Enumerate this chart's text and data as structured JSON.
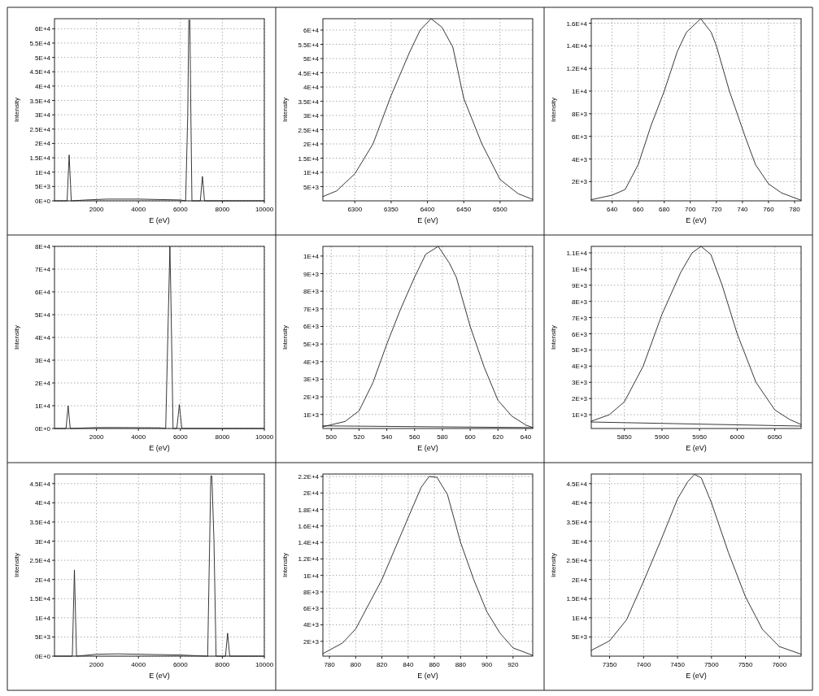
{
  "chart_data": [
    {
      "type": "line",
      "xlabel": "E (eV)",
      "ylabel": "Intensity",
      "grid": true,
      "xlim": [
        0,
        10000
      ],
      "xticks": [
        2000,
        4000,
        6000,
        8000,
        10000
      ],
      "ylim": [
        0,
        63500
      ],
      "yticks": [
        {
          "value": 0,
          "label": "0E+0"
        },
        {
          "value": 5000,
          "label": "5E+3"
        },
        {
          "value": 10000,
          "label": "1E+4"
        },
        {
          "value": 15000,
          "label": "1.5E+4"
        },
        {
          "value": 20000,
          "label": "2E+4"
        },
        {
          "value": 25000,
          "label": "2.5E+4"
        },
        {
          "value": 30000,
          "label": "3E+4"
        },
        {
          "value": 35000,
          "label": "3.5E+4"
        },
        {
          "value": 40000,
          "label": "4E+4"
        },
        {
          "value": 45000,
          "label": "4.5E+4"
        },
        {
          "value": 50000,
          "label": "5E+4"
        },
        {
          "value": 55000,
          "label": "5.5E+4"
        },
        {
          "value": 60000,
          "label": "6E+4"
        }
      ],
      "series": [
        {
          "color": "#222222",
          "x": [
            0,
            600,
            700,
            800,
            1500,
            2500,
            4000,
            6000,
            6250,
            6350,
            6400,
            6450,
            6500,
            6550,
            6950,
            7050,
            7150,
            10000
          ],
          "values": [
            0,
            0,
            16000,
            0,
            300,
            600,
            600,
            300,
            0,
            30000,
            63000,
            63000,
            30000,
            0,
            0,
            8500,
            0,
            0
          ]
        }
      ]
    },
    {
      "type": "line",
      "xlabel": "E (eV)",
      "ylabel": "Intensity",
      "grid": true,
      "xlim": [
        6256,
        6545
      ],
      "xticks": [
        6300,
        6350,
        6400,
        6450,
        6500
      ],
      "ylim": [
        0,
        64000
      ],
      "yticks": [
        {
          "value": 5000,
          "label": "5E+3"
        },
        {
          "value": 10000,
          "label": "1E+4"
        },
        {
          "value": 15000,
          "label": "1.5E+4"
        },
        {
          "value": 20000,
          "label": "2E+4"
        },
        {
          "value": 25000,
          "label": "2.5E+4"
        },
        {
          "value": 30000,
          "label": "3E+4"
        },
        {
          "value": 35000,
          "label": "3.5E+4"
        },
        {
          "value": 40000,
          "label": "4E+4"
        },
        {
          "value": 45000,
          "label": "4.5E+4"
        },
        {
          "value": 50000,
          "label": "5E+4"
        },
        {
          "value": 55000,
          "label": "5.5E+4"
        },
        {
          "value": 60000,
          "label": "6E+4"
        }
      ],
      "series": [
        {
          "color": "#222222",
          "x": [
            6256,
            6275,
            6300,
            6325,
            6350,
            6375,
            6390,
            6405,
            6420,
            6435,
            6450,
            6475,
            6500,
            6525,
            6545
          ],
          "values": [
            1500,
            3500,
            9500,
            20000,
            37000,
            52000,
            60000,
            64000,
            61000,
            54000,
            36000,
            20000,
            7500,
            2500,
            500
          ]
        }
      ]
    },
    {
      "type": "line",
      "xlabel": "E (eV)",
      "ylabel": "Intensity",
      "grid": true,
      "xlim": [
        624,
        785
      ],
      "xticks": [
        640,
        660,
        680,
        700,
        720,
        740,
        760,
        780
      ],
      "ylim": [
        300,
        16400
      ],
      "yticks": [
        {
          "value": 2000,
          "label": "2E+3"
        },
        {
          "value": 4000,
          "label": "4E+3"
        },
        {
          "value": 6000,
          "label": "6E+3"
        },
        {
          "value": 8000,
          "label": "8E+3"
        },
        {
          "value": 10000,
          "label": "1E+4"
        },
        {
          "value": 12000,
          "label": "1.2E+4"
        },
        {
          "value": 14000,
          "label": "1.4E+4"
        },
        {
          "value": 16000,
          "label": "1.6E+4"
        }
      ],
      "series": [
        {
          "color": "#222222",
          "x": [
            624,
            640,
            650,
            660,
            670,
            680,
            690,
            697,
            708,
            716,
            720,
            730,
            742,
            750,
            760,
            770,
            785
          ],
          "values": [
            400,
            800,
            1300,
            3500,
            7000,
            10000,
            13500,
            15200,
            16400,
            15200,
            14000,
            10000,
            6000,
            3500,
            1800,
            1000,
            350
          ]
        }
      ]
    },
    {
      "type": "line",
      "xlabel": "E (eV)",
      "ylabel": "Intensity",
      "grid": true,
      "xlim": [
        0,
        10000
      ],
      "xticks": [
        2000,
        4000,
        6000,
        8000,
        10000
      ],
      "ylim": [
        0,
        80000
      ],
      "yticks": [
        {
          "value": 0,
          "label": "0E+0"
        },
        {
          "value": 10000,
          "label": "1E+4"
        },
        {
          "value": 20000,
          "label": "2E+4"
        },
        {
          "value": 30000,
          "label": "3E+4"
        },
        {
          "value": 40000,
          "label": "4E+4"
        },
        {
          "value": 50000,
          "label": "5E+4"
        },
        {
          "value": 60000,
          "label": "6E+4"
        },
        {
          "value": 70000,
          "label": "7E+4"
        },
        {
          "value": 80000,
          "label": "8E+4"
        }
      ],
      "series": [
        {
          "color": "#222222",
          "x": [
            0,
            550,
            650,
            750,
            2000,
            3000,
            5000,
            5300,
            5450,
            5500,
            5550,
            5650,
            5830,
            5900,
            5950,
            6000,
            6070,
            10000
          ],
          "values": [
            0,
            0,
            10000,
            0,
            400,
            400,
            300,
            0,
            60000,
            80000,
            56000,
            0,
            0,
            6000,
            10500,
            6000,
            0,
            0
          ]
        }
      ]
    },
    {
      "type": "line",
      "xlabel": "E (eV)",
      "ylabel": "Intensity",
      "grid": true,
      "xlim": [
        494,
        645
      ],
      "xticks": [
        500,
        520,
        540,
        560,
        580,
        600,
        620,
        640
      ],
      "ylim": [
        200,
        10550
      ],
      "yticks": [
        {
          "value": 1000,
          "label": "1E+3"
        },
        {
          "value": 2000,
          "label": "2E+3"
        },
        {
          "value": 3000,
          "label": "3E+3"
        },
        {
          "value": 4000,
          "label": "4E+3"
        },
        {
          "value": 5000,
          "label": "5E+3"
        },
        {
          "value": 6000,
          "label": "6E+3"
        },
        {
          "value": 7000,
          "label": "7E+3"
        },
        {
          "value": 8000,
          "label": "8E+3"
        },
        {
          "value": 9000,
          "label": "9E+3"
        },
        {
          "value": 10000,
          "label": "1E+4"
        }
      ],
      "series": [
        {
          "color": "#222222",
          "x": [
            494,
            510,
            520,
            530,
            540,
            550,
            560,
            568,
            577,
            585,
            590,
            600,
            610,
            620,
            630,
            640,
            645
          ],
          "values": [
            300,
            600,
            1200,
            2800,
            5000,
            7000,
            8800,
            10100,
            10550,
            9600,
            8800,
            6000,
            3700,
            1800,
            900,
            400,
            250
          ]
        },
        {
          "color": "#222222",
          "x": [
            494,
            645
          ],
          "values": [
            350,
            250
          ]
        }
      ]
    },
    {
      "type": "line",
      "xlabel": "E (eV)",
      "ylabel": "Intensity",
      "grid": true,
      "xlim": [
        5806,
        6085
      ],
      "xticks": [
        5850,
        5900,
        5950,
        6000,
        6050
      ],
      "ylim": [
        150,
        11400
      ],
      "yticks": [
        {
          "value": 1000,
          "label": "1E+3"
        },
        {
          "value": 2000,
          "label": "2E+3"
        },
        {
          "value": 3000,
          "label": "3E+3"
        },
        {
          "value": 4000,
          "label": "4E+3"
        },
        {
          "value": 5000,
          "label": "5E+3"
        },
        {
          "value": 6000,
          "label": "6E+3"
        },
        {
          "value": 7000,
          "label": "7E+3"
        },
        {
          "value": 8000,
          "label": "8E+3"
        },
        {
          "value": 9000,
          "label": "9E+3"
        },
        {
          "value": 10000,
          "label": "1E+4"
        },
        {
          "value": 11000,
          "label": "1.1E+4"
        }
      ],
      "series": [
        {
          "color": "#222222",
          "x": [
            5806,
            5830,
            5850,
            5875,
            5900,
            5925,
            5940,
            5952,
            5965,
            5980,
            6000,
            6025,
            6050,
            6070,
            6085
          ],
          "values": [
            600,
            1000,
            1800,
            4000,
            7200,
            9800,
            11000,
            11400,
            10900,
            9000,
            6000,
            3000,
            1300,
            700,
            400
          ]
        },
        {
          "color": "#222222",
          "x": [
            5806,
            6085
          ],
          "values": [
            550,
            300
          ]
        }
      ]
    },
    {
      "type": "line",
      "xlabel": "E (eV)",
      "ylabel": "Intensity",
      "grid": true,
      "xlim": [
        0,
        10000
      ],
      "xticks": [
        2000,
        4000,
        6000,
        8000,
        10000
      ],
      "ylim": [
        0,
        47500
      ],
      "yticks": [
        {
          "value": 0,
          "label": "0E+0"
        },
        {
          "value": 5000,
          "label": "5E+3"
        },
        {
          "value": 10000,
          "label": "1E+4"
        },
        {
          "value": 15000,
          "label": "1.5E+4"
        },
        {
          "value": 20000,
          "label": "2E+4"
        },
        {
          "value": 25000,
          "label": "2.5E+4"
        },
        {
          "value": 30000,
          "label": "3E+4"
        },
        {
          "value": 35000,
          "label": "3.5E+4"
        },
        {
          "value": 40000,
          "label": "4E+4"
        },
        {
          "value": 45000,
          "label": "4.5E+4"
        }
      ],
      "series": [
        {
          "color": "#222222",
          "x": [
            0,
            850,
            950,
            1050,
            2000,
            3000,
            4000,
            6000,
            7300,
            7450,
            7500,
            7600,
            7700,
            8150,
            8250,
            8350,
            10000
          ],
          "values": [
            0,
            0,
            22500,
            0,
            500,
            600,
            500,
            300,
            0,
            47000,
            47000,
            30000,
            0,
            0,
            6000,
            0,
            0
          ]
        }
      ]
    },
    {
      "type": "line",
      "xlabel": "E (eV)",
      "ylabel": "Intensity",
      "grid": true,
      "xlim": [
        775,
        935
      ],
      "xticks": [
        780,
        800,
        820,
        840,
        860,
        880,
        900,
        920
      ],
      "ylim": [
        200,
        22300
      ],
      "yticks": [
        {
          "value": 2000,
          "label": "2E+3"
        },
        {
          "value": 4000,
          "label": "4E+3"
        },
        {
          "value": 6000,
          "label": "6E+3"
        },
        {
          "value": 8000,
          "label": "8E+3"
        },
        {
          "value": 10000,
          "label": "1E+4"
        },
        {
          "value": 12000,
          "label": "1.2E+4"
        },
        {
          "value": 14000,
          "label": "1.4E+4"
        },
        {
          "value": 16000,
          "label": "1.6E+4"
        },
        {
          "value": 18000,
          "label": "1.8E+4"
        },
        {
          "value": 20000,
          "label": "2E+4"
        },
        {
          "value": 22000,
          "label": "2.2E+4"
        }
      ],
      "series": [
        {
          "color": "#222222",
          "x": [
            775,
            790,
            800,
            820,
            840,
            850,
            856,
            862,
            870,
            880,
            890,
            900,
            910,
            920,
            935
          ],
          "values": [
            500,
            1800,
            3500,
            9500,
            17000,
            20700,
            22000,
            21900,
            19800,
            14000,
            9500,
            5600,
            3000,
            1200,
            300
          ]
        }
      ]
    },
    {
      "type": "line",
      "xlabel": "E (eV)",
      "ylabel": "Intensity",
      "grid": true,
      "xlim": [
        7323,
        7632
      ],
      "xticks": [
        7350,
        7400,
        7450,
        7500,
        7550,
        7600
      ],
      "ylim": [
        0,
        47500
      ],
      "yticks": [
        {
          "value": 5000,
          "label": "5E+3"
        },
        {
          "value": 10000,
          "label": "1E+4"
        },
        {
          "value": 15000,
          "label": "1.5E+4"
        },
        {
          "value": 20000,
          "label": "2E+4"
        },
        {
          "value": 25000,
          "label": "2.5E+4"
        },
        {
          "value": 30000,
          "label": "3E+4"
        },
        {
          "value": 35000,
          "label": "3.5E+4"
        },
        {
          "value": 40000,
          "label": "4E+4"
        },
        {
          "value": 45000,
          "label": "4.5E+4"
        }
      ],
      "series": [
        {
          "color": "#222222",
          "x": [
            7323,
            7350,
            7375,
            7400,
            7425,
            7450,
            7465,
            7475,
            7485,
            7500,
            7525,
            7550,
            7575,
            7600,
            7632
          ],
          "values": [
            1500,
            4000,
            9500,
            19500,
            30000,
            41000,
            45500,
            47400,
            46500,
            40000,
            27000,
            15500,
            7000,
            2500,
            500
          ]
        }
      ]
    }
  ]
}
